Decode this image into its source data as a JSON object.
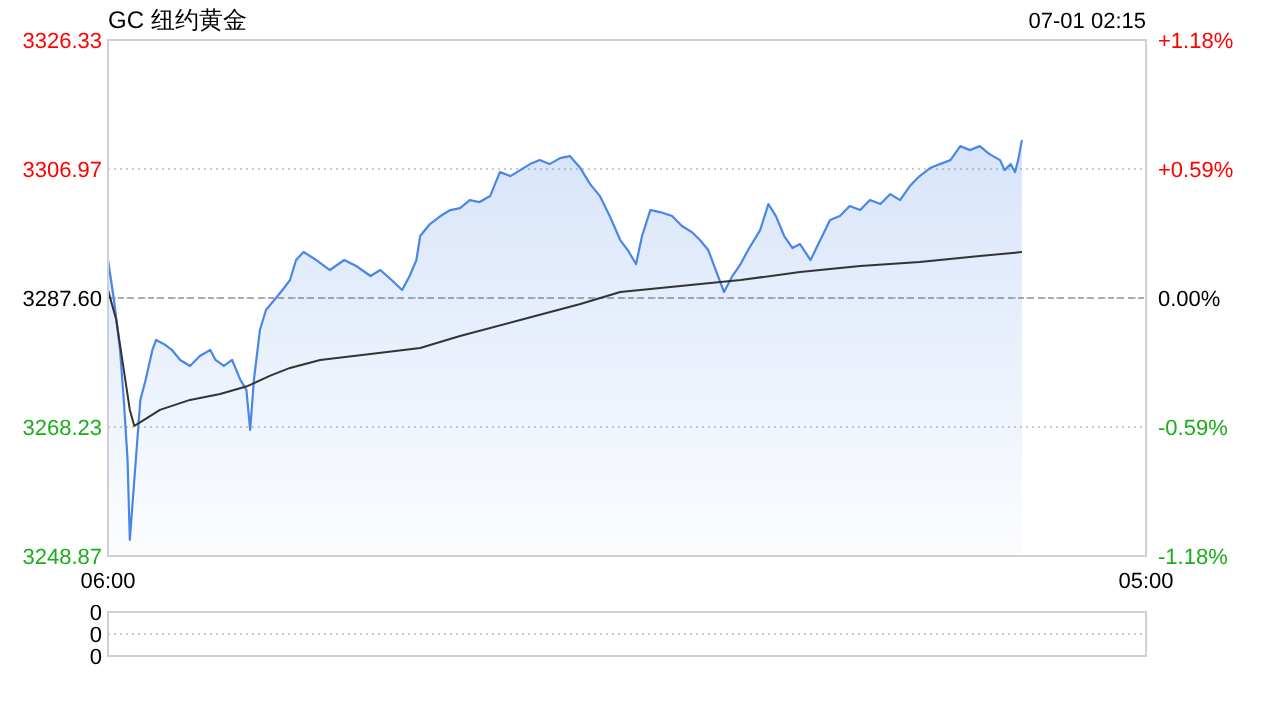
{
  "chart_data": [
    {
      "type": "area",
      "title": "GC 纽约黄金",
      "annotations": [
        "07-01 02:15"
      ],
      "xlim": [
        "--06-30T06:00",
        "--07-01T05:00"
      ],
      "xticks": [
        {
          "value": "--06-30T06:00",
          "label": "06:00"
        },
        {
          "value": "--07-01T05:00",
          "label": "05:00"
        }
      ],
      "ylim": [
        3248.87,
        3326.33
      ],
      "yticks": [
        {
          "value": 3248.87,
          "label": "3248.87"
        },
        {
          "value": 3268.23,
          "label": "3268.23"
        },
        {
          "value": 3287.6,
          "label": "3287.60"
        },
        {
          "value": 3306.97,
          "label": "3306.97"
        },
        {
          "value": 3326.33,
          "label": "3326.33"
        }
      ],
      "y2lim": [
        -1.18,
        1.18
      ],
      "y2ticks": [
        {
          "value": -1.18,
          "label": "-1.18%"
        },
        {
          "value": -0.59,
          "label": "-0.59%"
        },
        {
          "value": 0,
          "label": "0.00%"
        },
        {
          "value": 0.59,
          "label": "+0.59%"
        },
        {
          "value": 1.18,
          "label": "+1.18%"
        }
      ],
      "grid": "y",
      "ref_lines": [
        {
          "axis": "y",
          "value": 3287.6,
          "line_style": "dashed",
          "color": "#aaaaaa"
        }
      ],
      "series": [
        {
          "color": "#4a86e8",
          "x": [
            "--06-30T06:00",
            "--06-30T06:08",
            "--06-30T06:16",
            "--06-30T06:21",
            "--06-30T06:26",
            "--06-30T06:29",
            "--06-30T06:35",
            "--06-30T06:43",
            "--06-30T06:50",
            "--06-30T06:59",
            "--06-30T07:04",
            "--06-30T07:14",
            "--06-30T07:25",
            "--06-30T07:36",
            "--06-30T07:49",
            "--06-30T08:02",
            "--06-30T08:16",
            "--06-30T08:23",
            "--06-30T08:34",
            "--06-30T08:45",
            "--06-30T08:56",
            "--06-30T09:04",
            "--06-30T09:09",
            "--06-30T09:14",
            "--06-30T09:22",
            "--06-30T09:30",
            "--06-30T09:41",
            "--06-30T09:52",
            "--06-30T10:02",
            "--06-30T10:10",
            "--06-30T10:20",
            "--06-30T10:37",
            "--06-30T10:55",
            "--06-30T11:14",
            "--06-30T11:30",
            "--06-30T11:49",
            "--06-30T12:02",
            "--06-30T12:17",
            "--06-30T12:31",
            "--06-30T12:41",
            "--06-30T12:50",
            "--06-30T12:55",
            "--06-30T13:08",
            "--06-30T13:22",
            "--06-30T13:35",
            "--06-30T13:48",
            "--06-30T14:01",
            "--06-30T14:14",
            "--06-30T14:28",
            "--06-30T14:41",
            "--06-30T14:55",
            "--06-30T15:08",
            "--06-30T15:21",
            "--06-30T15:34",
            "--06-30T15:47",
            "--06-30T16:01",
            "--06-30T16:14",
            "--06-30T16:28",
            "--06-30T16:41",
            "--06-30T16:54",
            "--06-30T17:07",
            "--06-30T17:21",
            "--06-30T17:31",
            "--06-30T17:42",
            "--06-30T17:50",
            "--06-30T18:01",
            "--06-30T18:14",
            "--06-30T18:30",
            "--06-30T18:43",
            "--06-30T18:56",
            "--06-30T19:07",
            "--06-30T19:18",
            "--06-30T19:28",
            "--06-30T19:39",
            "--06-30T19:50",
            "--06-30T20:01",
            "--06-30T20:11",
            "--06-30T20:27",
            "--06-30T20:38",
            "--06-30T20:48",
            "--06-30T20:59",
            "--06-30T21:10",
            "--06-30T21:20",
            "--06-30T21:34",
            "--06-30T21:47",
            "--06-30T22:00",
            "--06-30T22:13",
            "--06-30T22:26",
            "--06-30T22:40",
            "--06-30T22:53",
            "--06-30T23:07",
            "--06-30T23:20",
            "--06-30T23:33",
            "--06-30T23:46",
            "--06-30T23:59",
            "--07-01T00:13",
            "--07-01T00:26",
            "--07-01T00:40",
            "--07-01T00:53",
            "--07-01T01:06",
            "--07-01T01:19",
            "--07-01T01:32",
            "--07-01T01:46",
            "--07-01T01:52",
            "--07-01T02:00",
            "--07-01T02:06",
            "--07-01T02:10",
            "--07-01T02:15"
          ],
          "values": [
            3293.3,
            3287.3,
            3279.8,
            3272.3,
            3263.3,
            3251.3,
            3260.3,
            3272.3,
            3275.3,
            3279.8,
            3281.3,
            3280.7,
            3279.8,
            3278.3,
            3277.4,
            3278.9,
            3279.8,
            3278.3,
            3277.4,
            3278.3,
            3275.3,
            3273.8,
            3267.8,
            3275.3,
            3282.8,
            3285.8,
            3287.3,
            3288.8,
            3290.3,
            3293.3,
            3294.5,
            3293.3,
            3291.8,
            3293.3,
            3292.4,
            3290.9,
            3291.8,
            3290.3,
            3288.8,
            3290.9,
            3293.3,
            3296.9,
            3298.7,
            3299.9,
            3300.8,
            3301.1,
            3302.3,
            3302.0,
            3302.9,
            3306.5,
            3305.9,
            3306.8,
            3307.7,
            3308.3,
            3307.7,
            3308.6,
            3308.9,
            3307.1,
            3304.7,
            3302.9,
            3299.9,
            3296.3,
            3294.8,
            3292.7,
            3296.9,
            3300.8,
            3300.5,
            3299.9,
            3298.4,
            3297.5,
            3296.3,
            3294.8,
            3291.8,
            3288.5,
            3290.9,
            3292.7,
            3294.8,
            3297.8,
            3301.7,
            3299.9,
            3296.9,
            3295.1,
            3295.7,
            3293.3,
            3296.3,
            3299.3,
            3299.9,
            3301.4,
            3300.8,
            3302.3,
            3301.7,
            3303.2,
            3302.3,
            3304.4,
            3305.9,
            3307.1,
            3307.7,
            3308.3,
            3310.4,
            3309.8,
            3310.4,
            3309.2,
            3308.3,
            3306.8,
            3307.7,
            3306.5,
            3308.3,
            3311.3
          ]
        },
        {
          "type": "line",
          "color": "#333333",
          "x": [
            "--06-30T06:00",
            "--06-30T06:11",
            "--06-30T06:21",
            "--06-30T06:29",
            "--06-30T06:35",
            "--06-30T06:48",
            "--06-30T07:09",
            "--06-30T07:49",
            "--06-30T08:29",
            "--06-30T09:06",
            "--06-30T09:35",
            "--06-30T10:02",
            "--06-30T10:42",
            "--06-30T11:49",
            "--06-30T12:55",
            "--06-30T13:48",
            "--06-30T15:08",
            "--06-30T16:28",
            "--06-30T17:21",
            "--06-30T18:41",
            "--06-30T20:01",
            "--06-30T21:20",
            "--06-30T22:40",
            "--06-30T23:59",
            "--07-01T01:19",
            "--07-01T02:15"
          ],
          "values": [
            3288.8,
            3284.3,
            3276.8,
            3270.8,
            3268.4,
            3269.3,
            3270.8,
            3272.3,
            3273.2,
            3274.4,
            3275.9,
            3277.1,
            3278.3,
            3279.2,
            3280.1,
            3281.9,
            3284.3,
            3286.7,
            3288.5,
            3289.4,
            3290.3,
            3291.5,
            3292.4,
            3293.0,
            3293.9,
            3294.5
          ]
        }
      ]
    },
    {
      "type": "other",
      "annotations": [
        "0",
        "0",
        "0"
      ]
    }
  ]
}
